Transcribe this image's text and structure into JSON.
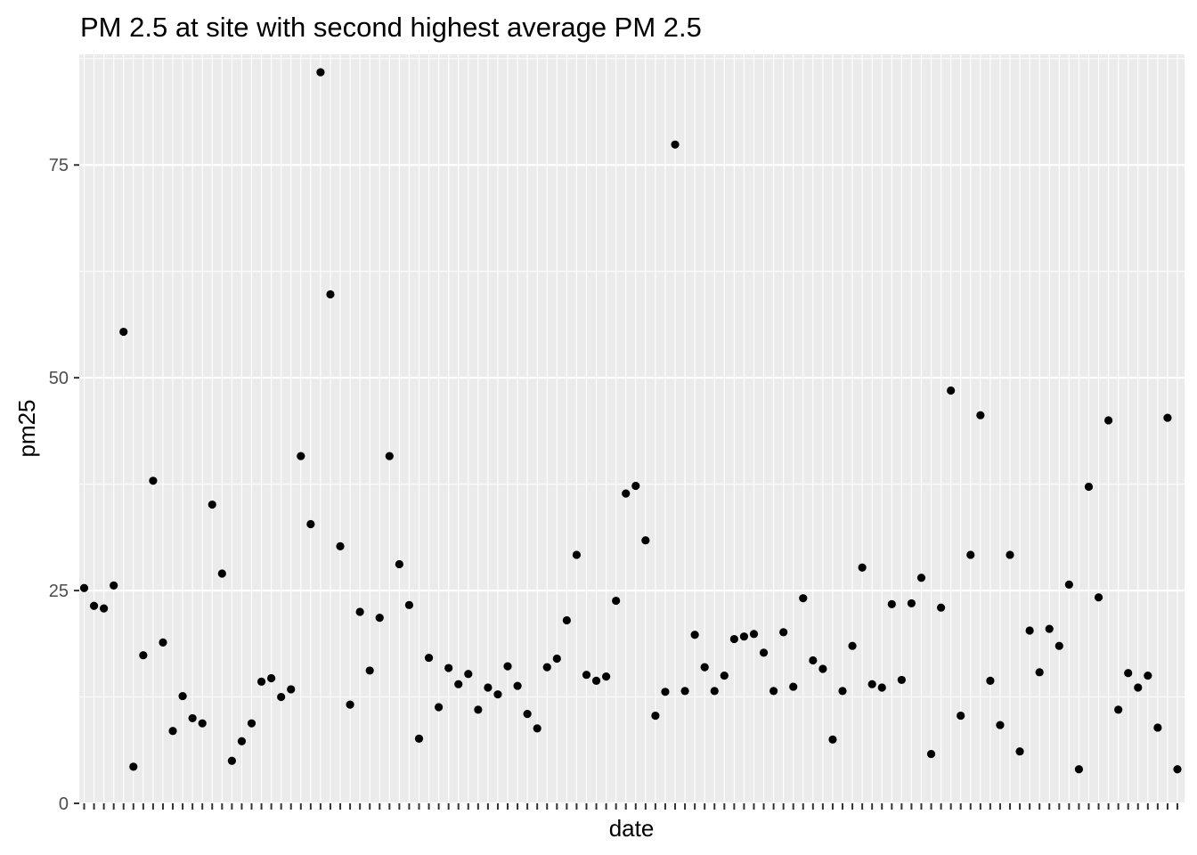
{
  "chart_data": {
    "type": "scatter",
    "title": "PM 2.5 at site with second highest average PM 2.5",
    "xlabel": "date",
    "ylabel": "pm25",
    "x_axis": "categorical dates (tick labels not printed)",
    "ylim": [
      0,
      88
    ],
    "y_ticks": [
      0,
      25,
      50,
      75
    ],
    "grid": true,
    "point_color": "#000000",
    "panel_color": "#ebebeb",
    "values": [
      25.3,
      23.2,
      22.9,
      25.6,
      55.4,
      4.3,
      17.4,
      37.9,
      18.9,
      8.5,
      12.6,
      10.0,
      9.4,
      35.1,
      27.0,
      5.0,
      7.3,
      9.4,
      14.3,
      14.7,
      12.5,
      13.4,
      40.8,
      32.8,
      85.9,
      59.8,
      30.2,
      11.6,
      22.5,
      15.6,
      21.8,
      40.8,
      28.1,
      23.3,
      7.6,
      17.1,
      11.3,
      15.9,
      14.0,
      15.2,
      11.0,
      13.6,
      12.8,
      16.1,
      13.8,
      10.5,
      8.8,
      16.0,
      17.0,
      21.5,
      29.2,
      15.1,
      14.4,
      14.9,
      23.8,
      36.4,
      37.3,
      30.9,
      10.3,
      13.1,
      77.4,
      13.2,
      19.8,
      16.0,
      13.2,
      15.0,
      19.3,
      19.6,
      19.9,
      17.7,
      13.2,
      20.1,
      13.7,
      24.1,
      16.8,
      15.8,
      7.5,
      13.2,
      18.5,
      27.7,
      14.0,
      13.6,
      23.4,
      14.5,
      23.5,
      26.5,
      5.8,
      23.0,
      48.5,
      10.3,
      29.2,
      45.6,
      14.4,
      9.2,
      29.2,
      6.1,
      20.3,
      15.4,
      20.5,
      18.5,
      25.7,
      4.0,
      37.2,
      24.2,
      45.0,
      11.0,
      15.3,
      13.6,
      15.0,
      8.9,
      45.3,
      4.0
    ]
  }
}
